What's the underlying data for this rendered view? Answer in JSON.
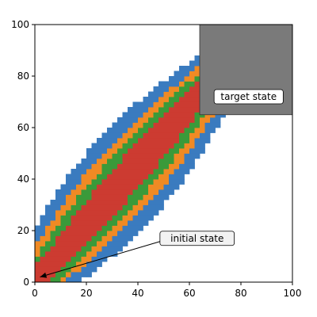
{
  "chart_data": {
    "type": "heatmap",
    "xlim": [
      0,
      100
    ],
    "ylim": [
      0,
      100
    ],
    "x_ticks": [
      "0",
      "20",
      "40",
      "60",
      "80",
      "100"
    ],
    "y_ticks": [
      "0",
      "20",
      "40",
      "60",
      "80",
      "100"
    ],
    "grid": false,
    "cell_size": 2,
    "colors": {
      "level1": "#3a7bbf",
      "level2": "#f08a24",
      "level3": "#3a9a3a",
      "level4": "#cc3b31",
      "target": "#7a7a7a"
    },
    "band": {
      "start": [
        0,
        0
      ],
      "end": [
        70,
        80
      ],
      "half_width_levels": [
        6,
        9.5,
        13,
        16.5
      ],
      "end_extent": 4
    },
    "target_region": {
      "x": [
        64,
        100
      ],
      "y": [
        65,
        100
      ]
    },
    "annotations": [
      {
        "text": "target state",
        "x": 83,
        "y": 72
      },
      {
        "text": "initial state",
        "x": 63,
        "y": 17,
        "arrow_to": [
          2,
          2
        ]
      }
    ]
  }
}
